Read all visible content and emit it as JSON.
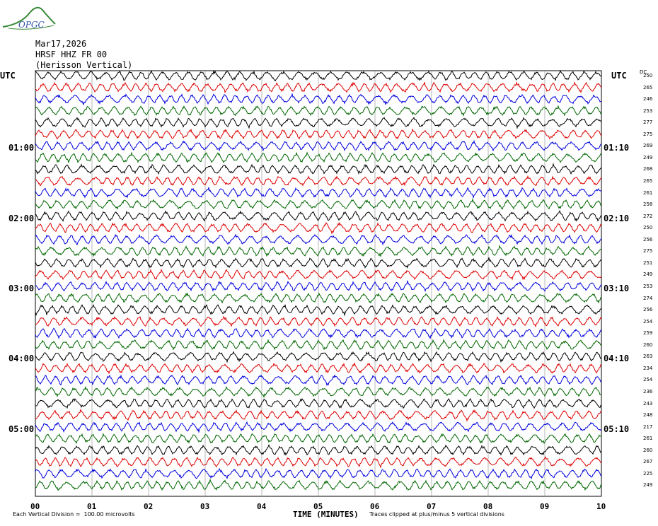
{
  "logo_text": "OPGC",
  "header": {
    "date": "Mar17,2026",
    "station": "HRSF HHZ FR 00",
    "location": "(Herisson Vertical)"
  },
  "utc_left": "UTC",
  "utc_right": "UTC",
  "dc_label": "DC",
  "footer": {
    "scale": "Each Vertical Division =  100.00 microvolts",
    "xlabel": "TIME (MINUTES)",
    "clip": "Traces clipped at plus/minus 5 vertical divisions"
  },
  "chart_data": {
    "type": "line",
    "title": "",
    "xlabel": "TIME (MINUTES)",
    "xlim": [
      0,
      10
    ],
    "x_ticks": [
      "00",
      "01",
      "02",
      "03",
      "04",
      "05",
      "06",
      "07",
      "08",
      "09",
      "10"
    ],
    "left_time_labels": [
      {
        "row": 6,
        "text": "01:00"
      },
      {
        "row": 12,
        "text": "02:00"
      },
      {
        "row": 18,
        "text": "03:00"
      },
      {
        "row": 24,
        "text": "04:00"
      },
      {
        "row": 30,
        "text": "05:00"
      }
    ],
    "right_time_labels": [
      {
        "row": 6,
        "text": "01:10"
      },
      {
        "row": 12,
        "text": "02:10"
      },
      {
        "row": 18,
        "text": "03:10"
      },
      {
        "row": 24,
        "text": "04:10"
      },
      {
        "row": 30,
        "text": "05:10"
      }
    ],
    "trace_colors": [
      "#000000",
      "#dd0000",
      "#0000dd",
      "#006600"
    ],
    "dc_offsets": [
      250,
      265,
      246,
      253,
      277,
      275,
      269,
      249,
      268,
      265,
      261,
      258,
      272,
      250,
      256,
      275,
      251,
      249,
      253,
      274,
      256,
      254,
      259,
      260,
      263,
      234,
      254,
      236,
      243,
      248,
      217,
      261,
      260,
      267,
      225,
      249
    ]
  }
}
